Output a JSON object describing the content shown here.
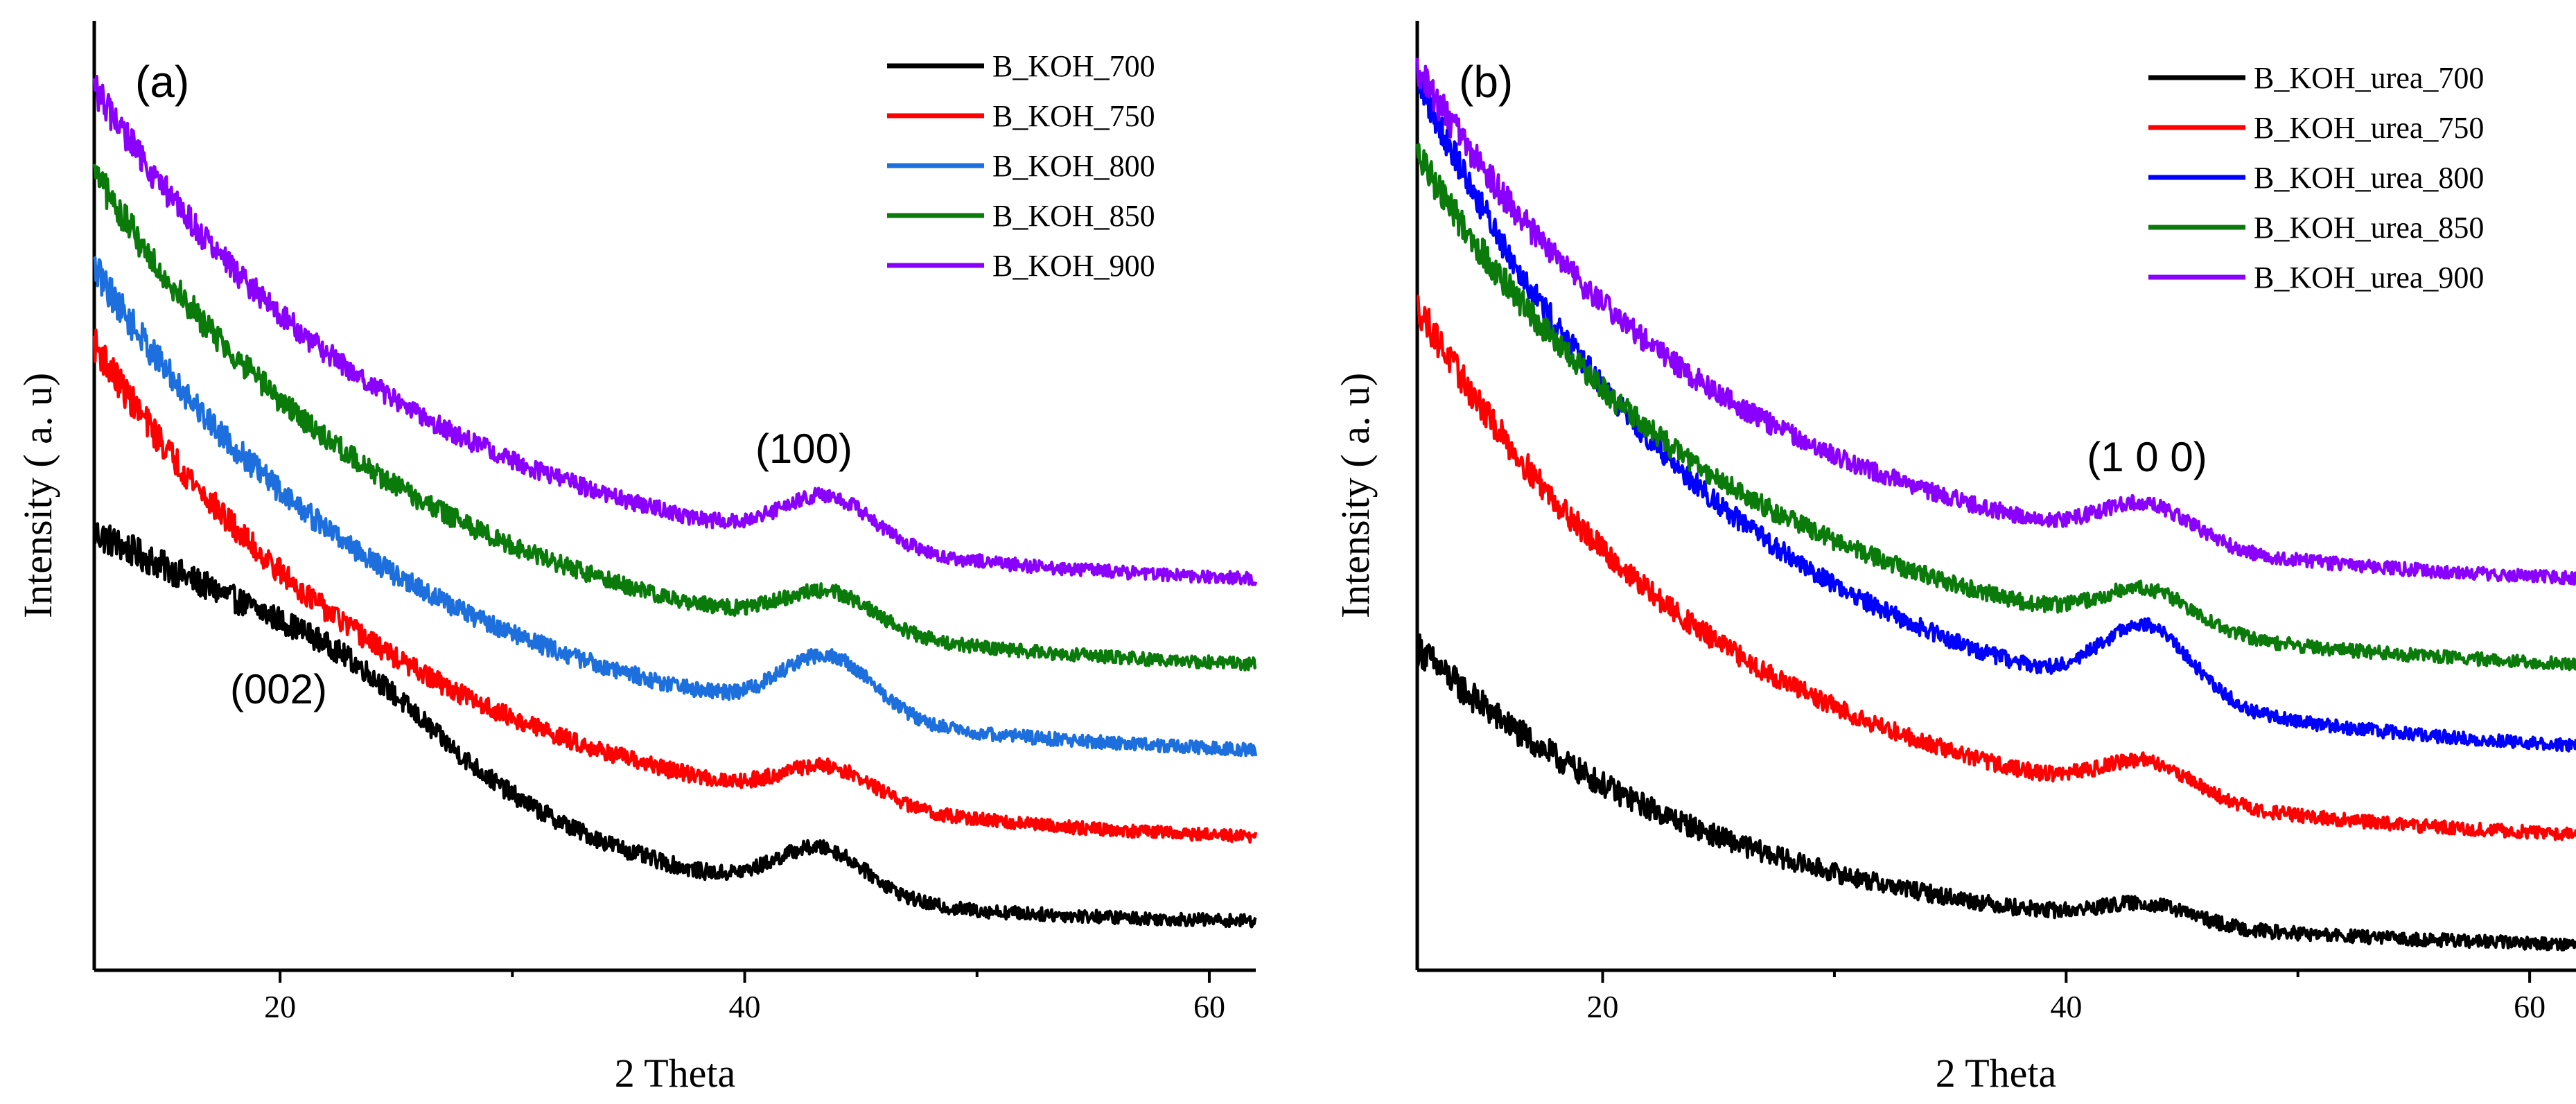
{
  "chart_data": [
    {
      "type": "line",
      "panel_label": "(a)",
      "xlabel": "2 Theta",
      "ylabel": "Intensity ( a. u)",
      "xlim": [
        12,
        62
      ],
      "ylim": [
        0,
        1
      ],
      "xticks_major": [
        20,
        40,
        60
      ],
      "xticks_minor": [
        30,
        50
      ],
      "annotations": [
        {
          "text": "(100)",
          "x": 43,
          "y": 0.58
        },
        {
          "text": "(002)",
          "x": 17.5,
          "y": 0.3
        }
      ],
      "legend_position": "top-right",
      "series": [
        {
          "name": "B_KOH_700",
          "color": "#000000",
          "start": 0.46,
          "pre_slope": 0.15,
          "end": 0.048,
          "peak_x": 43.3,
          "peak_height": 0.05,
          "min_x": 37,
          "shoulder": "002"
        },
        {
          "name": "B_KOH_750",
          "color": "#ff0000",
          "start": 0.66,
          "end": 0.128,
          "peak_x": 43.6,
          "peak_height": 0.037,
          "min_x": 36
        },
        {
          "name": "B_KOH_800",
          "color": "#1c6fdc",
          "start": 0.74,
          "end": 0.22,
          "peak_x": 43.6,
          "peak_height": 0.063,
          "min_x": 37
        },
        {
          "name": "B_KOH_850",
          "color": "#0a7a0a",
          "start": 0.84,
          "end": 0.31,
          "peak_x": 43.6,
          "peak_height": 0.04,
          "min_x": 37
        },
        {
          "name": "B_KOH_900",
          "color": "#8a00ff",
          "start": 0.93,
          "end": 0.4,
          "peak_x": 43.6,
          "peak_height": 0.05,
          "min_x": 36
        }
      ]
    },
    {
      "type": "line",
      "panel_label": "(b)",
      "xlabel": "2 Theta",
      "ylabel": "Intensity ( a. u)",
      "xlim": [
        12,
        62
      ],
      "ylim": [
        0,
        1
      ],
      "xticks_major": [
        20,
        40,
        60
      ],
      "xticks_minor": [
        30,
        50
      ],
      "annotations": [
        {
          "text": "(1 0 0)",
          "x": 44,
          "y": 0.56
        }
      ],
      "legend_position": "top-right",
      "series": [
        {
          "name": "B_KOH_urea_700",
          "color": "#000000",
          "start": 0.34,
          "end": 0.02,
          "peak_x": 43.5,
          "peak_height": 0.02,
          "min_x": 37
        },
        {
          "name": "B_KOH_urea_750",
          "color": "#ff0000",
          "start": 0.7,
          "end": 0.13,
          "peak_x": 43.5,
          "peak_height": 0.037,
          "min_x": 37
        },
        {
          "name": "B_KOH_urea_800",
          "color": "#0000ff",
          "start": 0.94,
          "end": 0.22,
          "peak_x": 43.5,
          "peak_height": 0.075,
          "min_x": 37
        },
        {
          "name": "B_KOH_urea_850",
          "color": "#0a7a0a",
          "start": 0.86,
          "end": 0.31,
          "peak_x": 43.5,
          "peak_height": 0.04,
          "min_x": 37
        },
        {
          "name": "B_KOH_urea_900",
          "color": "#8a00ff",
          "start": 0.95,
          "end": 0.4,
          "peak_x": 43.5,
          "peak_height": 0.04,
          "min_x": 36
        }
      ]
    }
  ]
}
